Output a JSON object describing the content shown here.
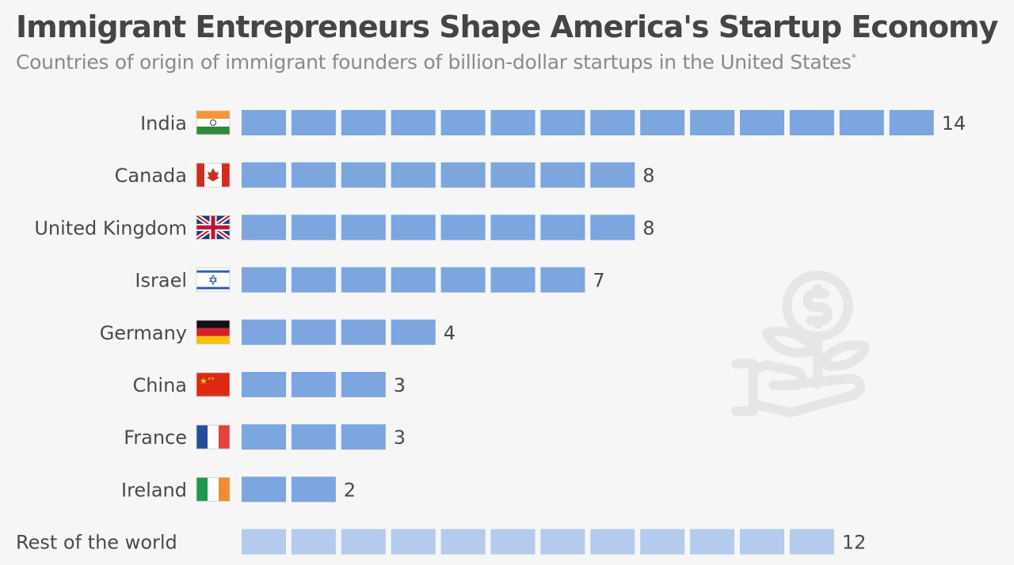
{
  "title": "Immigrant Entrepreneurs Shape America's Startup Economy",
  "subtitle": "Countries of origin of immigrant founders of billion-dollar startups in the United States",
  "subtitle_mark": "*",
  "chart_data": {
    "type": "bar",
    "orientation": "horizontal",
    "style": "pictogram (one block per founder)",
    "categories": [
      "India",
      "Canada",
      "United Kingdom",
      "Israel",
      "Germany",
      "China",
      "France",
      "Ireland",
      "Rest of the world"
    ],
    "flags": [
      "india",
      "canada",
      "united-kingdom",
      "israel",
      "germany",
      "china",
      "france",
      "ireland",
      null
    ],
    "values": [
      14,
      8,
      8,
      7,
      4,
      3,
      3,
      2,
      12
    ],
    "colors": {
      "primary": "#7ba6df",
      "rest": "#b4cbee"
    },
    "grid": false,
    "legend": "none"
  },
  "watermark_icon": "money-plant-hand-icon"
}
